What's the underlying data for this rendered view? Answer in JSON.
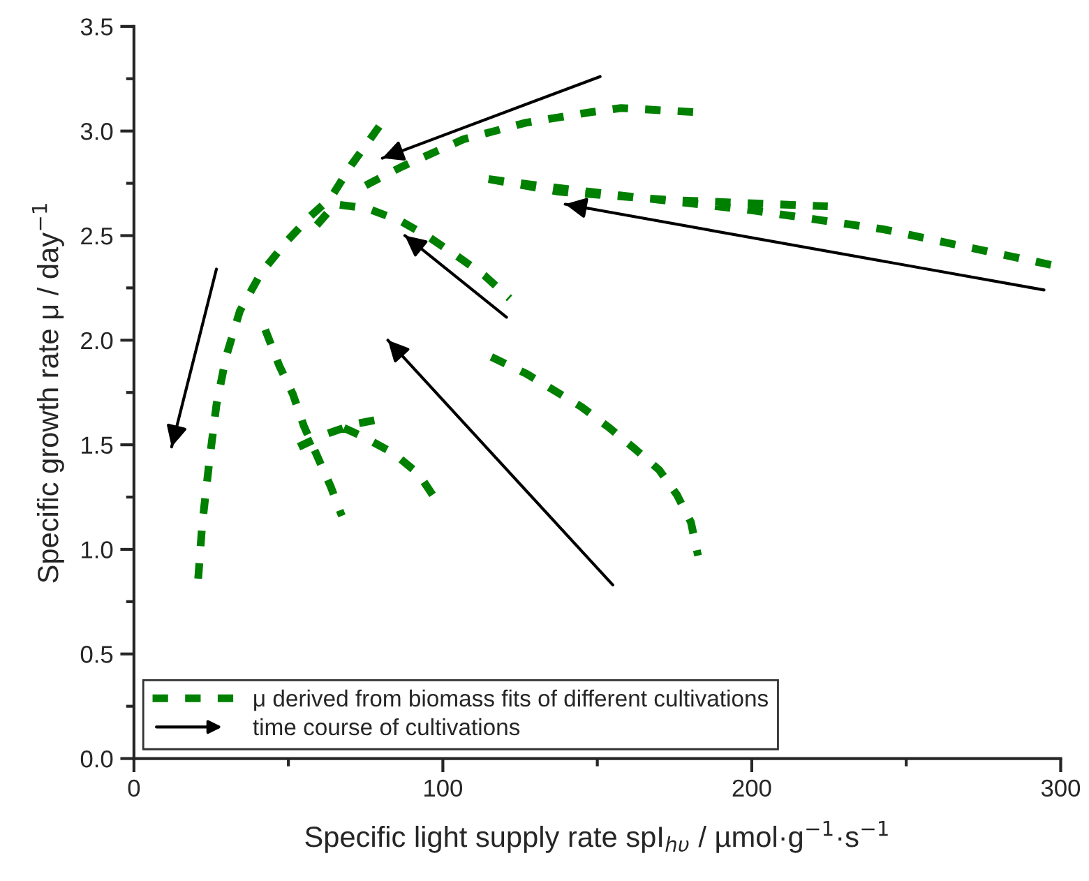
{
  "chart_data": {
    "type": "line",
    "xlabel": "Specific light supply rate spI$_{hυ}$ / µmol·g$^{−1}$·s$^{−1}$",
    "ylabel": "Specific growth rate μ / day$^{−1}$",
    "xlim": [
      0,
      300
    ],
    "xticks": [
      0,
      {
        "value": 50,
        "label": null
      },
      100,
      {
        "value": 150,
        "label": null
      },
      200,
      {
        "value": 250,
        "label": null
      },
      300
    ],
    "ylim": [
      0,
      3.5
    ],
    "yticks": [
      {
        "value": 0,
        "label": "0.0"
      },
      {
        "value": 0.25,
        "label": null
      },
      0.5,
      {
        "value": 0.75,
        "label": null
      },
      {
        "value": 1,
        "label": "1.0"
      },
      {
        "value": 1.25,
        "label": null
      },
      1.5,
      {
        "value": 1.75,
        "label": null
      },
      {
        "value": 2,
        "label": "2.0"
      },
      {
        "value": 2.25,
        "label": null
      },
      2.5,
      {
        "value": 2.75,
        "label": null
      },
      {
        "value": 3,
        "label": "3.0"
      },
      {
        "value": 3.25,
        "label": null
      },
      3.5
    ],
    "legend": "bottom left",
    "grid": false,
    "series": [
      {
        "name": "μ derived from biomass fits of different cultivations",
        "color": "#008000",
        "line_style": "dashed",
        "x": [
          20.8,
          22.1,
          24.4,
          26.7,
          29.8,
          34.3,
          41.1,
          49.3,
          56.9,
          63.7,
          70.5,
          76.4,
          82.2,
          null,
          59.2,
          65.1,
          75.5,
          86.3,
          95.8,
          104.8,
          113.4,
          121.6,
          null,
          75,
          86.8,
          106.6,
          127,
          147.8,
          157.7,
          181.6,
          null,
          114.8,
          137.4,
          173.5,
          224.6,
          null,
          114.8,
          136,
          158.6,
          200.6,
          242.7,
          296.9,
          null,
          115.7,
          127,
          145,
          154,
          162.2,
          170,
          175.8,
          180.3,
          182.6,
          null,
          42.5,
          47,
          51.5,
          55,
          59.2,
          63.7,
          67.3,
          null,
          53.3,
          61.9,
          71.8,
          82.2,
          null,
          68,
          74,
          84,
          92.2,
          97.6
        ],
        "values": [
          0.86,
          1.12,
          1.42,
          1.69,
          1.92,
          2.14,
          2.32,
          2.47,
          2.59,
          2.68,
          2.84,
          2.96,
          3.08,
          null,
          2.55,
          2.65,
          2.63,
          2.57,
          2.49,
          2.4,
          2.31,
          2.2,
          null,
          2.74,
          2.83,
          2.96,
          3.04,
          3.09,
          3.11,
          3.09,
          null,
          2.77,
          2.71,
          2.67,
          2.64,
          null,
          2.77,
          2.73,
          2.69,
          2.62,
          2.53,
          2.36,
          null,
          1.92,
          1.84,
          1.68,
          1.58,
          1.48,
          1.38,
          1.26,
          1.13,
          0.97,
          null,
          2.05,
          1.88,
          1.74,
          1.59,
          1.45,
          1.3,
          1.16,
          null,
          1.49,
          1.55,
          1.6,
          1.63,
          null,
          1.58,
          1.54,
          1.46,
          1.36,
          1.24
        ]
      },
      {
        "name": "time course of cultivations",
        "color": "#000000",
        "line_style": "solid",
        "x": [
          26.7,
          12.2,
          null,
          150.9,
          80.4,
          null,
          294.6,
          139.6,
          null,
          120.6,
          87.7,
          null,
          155,
          82.2
        ],
        "values": [
          2.34,
          1.49,
          null,
          3.26,
          2.87,
          null,
          2.24,
          2.65,
          null,
          2.11,
          2.5,
          null,
          0.83,
          2.0
        ]
      }
    ]
  }
}
